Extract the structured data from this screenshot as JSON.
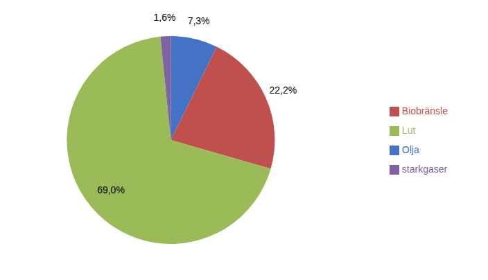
{
  "chart_data": {
    "type": "pie",
    "categories": [
      "Olja",
      "Biobränsle",
      "Lut",
      "starkgaser"
    ],
    "values": [
      7.3,
      22.2,
      69.0,
      1.6
    ],
    "value_labels": [
      "7,3%",
      "22,2%",
      "69,0%",
      "1,6%"
    ],
    "colors": [
      "#4472C4",
      "#C0504D",
      "#9BBB59",
      "#8064A2"
    ],
    "legend": "right",
    "data_labels": true
  }
}
